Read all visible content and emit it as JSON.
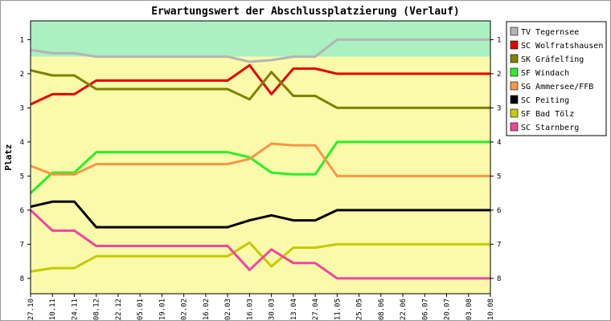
{
  "chart_data": {
    "type": "line",
    "title": "Erwartungswert der Abschlussplatzierung (Verlauf)",
    "ylabel": "Platz",
    "xlabel": "",
    "ylim": [
      8.45,
      0.45
    ],
    "y_inverted": true,
    "y_ticks": [
      1,
      2,
      3,
      4,
      5,
      6,
      7,
      8
    ],
    "grid": false,
    "legend_position": "right",
    "zones": [
      {
        "from": 0.45,
        "to": 1.5,
        "color": "#aaf0c0"
      },
      {
        "from": 1.5,
        "to": 8.45,
        "color": "#fafaaa"
      }
    ],
    "categories": [
      "27.10",
      "10.11",
      "24.11",
      "08.12",
      "22.12",
      "05.01",
      "19.01",
      "02.02",
      "16.02",
      "02.03",
      "16.03",
      "30.03",
      "13.04",
      "27.04",
      "11.05",
      "25.05",
      "08.06",
      "22.06",
      "06.07",
      "20.07",
      "03.08",
      "10.08"
    ],
    "series": [
      {
        "name": "TV Tegernsee",
        "color": "#b4b4b4",
        "values": [
          1.3,
          1.4,
          1.4,
          1.5,
          1.5,
          1.5,
          1.5,
          1.5,
          1.5,
          1.5,
          1.65,
          1.6,
          1.5,
          1.5,
          1.0,
          1.0,
          1.0,
          1.0,
          1.0,
          1.0,
          1.0,
          1.0
        ]
      },
      {
        "name": "SC Wolfratshausen",
        "color": "#e60000",
        "values": [
          2.9,
          2.6,
          2.6,
          2.2,
          2.2,
          2.2,
          2.2,
          2.2,
          2.2,
          2.2,
          1.75,
          2.6,
          1.85,
          1.85,
          2.0,
          2.0,
          2.0,
          2.0,
          2.0,
          2.0,
          2.0,
          2.0
        ]
      },
      {
        "name": "SK Gräfelfing",
        "color": "#808000",
        "values": [
          1.9,
          2.05,
          2.05,
          2.45,
          2.45,
          2.45,
          2.45,
          2.45,
          2.45,
          2.45,
          2.75,
          1.95,
          2.65,
          2.65,
          3.0,
          3.0,
          3.0,
          3.0,
          3.0,
          3.0,
          3.0,
          3.0
        ]
      },
      {
        "name": "SF Windach",
        "color": "#28f028",
        "values": [
          5.5,
          4.9,
          4.9,
          4.3,
          4.3,
          4.3,
          4.3,
          4.3,
          4.3,
          4.3,
          4.45,
          4.9,
          4.95,
          4.95,
          4.0,
          4.0,
          4.0,
          4.0,
          4.0,
          4.0,
          4.0,
          4.0
        ]
      },
      {
        "name": "SG Ammersee/FFB",
        "color": "#fa9646",
        "values": [
          4.7,
          4.95,
          4.95,
          4.65,
          4.65,
          4.65,
          4.65,
          4.65,
          4.65,
          4.65,
          4.5,
          4.05,
          4.1,
          4.1,
          5.0,
          5.0,
          5.0,
          5.0,
          5.0,
          5.0,
          5.0,
          5.0
        ]
      },
      {
        "name": "SC Peiting",
        "color": "#000000",
        "values": [
          5.9,
          5.75,
          5.75,
          6.5,
          6.5,
          6.5,
          6.5,
          6.5,
          6.5,
          6.5,
          6.3,
          6.15,
          6.3,
          6.3,
          6.0,
          6.0,
          6.0,
          6.0,
          6.0,
          6.0,
          6.0,
          6.0
        ]
      },
      {
        "name": "SF Bad Tölz",
        "color": "#c8c800",
        "values": [
          7.8,
          7.7,
          7.7,
          7.35,
          7.35,
          7.35,
          7.35,
          7.35,
          7.35,
          7.35,
          6.95,
          7.65,
          7.1,
          7.1,
          7.0,
          7.0,
          7.0,
          7.0,
          7.0,
          7.0,
          7.0,
          7.0
        ]
      },
      {
        "name": "SC Starnberg",
        "color": "#f046a0",
        "values": [
          6.0,
          6.6,
          6.6,
          7.05,
          7.05,
          7.05,
          7.05,
          7.05,
          7.05,
          7.05,
          7.75,
          7.15,
          7.55,
          7.55,
          8.0,
          8.0,
          8.0,
          8.0,
          8.0,
          8.0,
          8.0,
          8.0
        ]
      }
    ]
  }
}
